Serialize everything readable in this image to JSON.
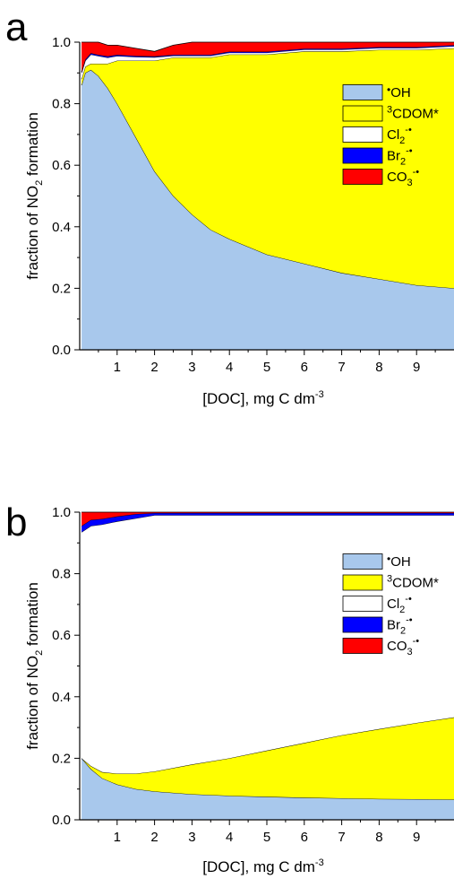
{
  "colors": {
    "OH": "#a8c8ec",
    "CDOM": "#ffff00",
    "Cl2": "#ffffff",
    "Br2": "#0000ff",
    "CO3": "#ff0000"
  },
  "panels": [
    {
      "letter": "a"
    },
    {
      "letter": "b"
    }
  ],
  "chart_data": [
    {
      "type": "area",
      "stacked": true,
      "x_label_parts": {
        "main": "[DOC], mg C dm",
        "sup": "-3"
      },
      "y_label_parts": {
        "pre": "fraction of NO",
        "sub": "2",
        "post": " formation"
      },
      "xlim": [
        0,
        10
      ],
      "ylim": [
        0,
        1.0
      ],
      "xticks": [
        1,
        2,
        3,
        4,
        5,
        6,
        7,
        8,
        9
      ],
      "yticks": [
        0.0,
        0.2,
        0.4,
        0.6,
        0.8,
        1.0
      ],
      "ytick_labels": [
        "0.0",
        "0.2",
        "0.4",
        "0.6",
        "0.8",
        "1.0"
      ],
      "legend_position": "right",
      "x": [
        0.05,
        0.15,
        0.3,
        0.5,
        0.75,
        1.0,
        1.5,
        2.0,
        2.5,
        3.0,
        3.5,
        4.0,
        5.0,
        6.0,
        7.0,
        8.0,
        9.0,
        10.0
      ],
      "series": [
        {
          "name": "OH",
          "values": [
            0.86,
            0.9,
            0.91,
            0.89,
            0.85,
            0.8,
            0.69,
            0.58,
            0.5,
            0.44,
            0.39,
            0.36,
            0.31,
            0.28,
            0.25,
            0.23,
            0.21,
            0.2
          ]
        },
        {
          "name": "CDOM",
          "values": [
            0.02,
            0.02,
            0.02,
            0.04,
            0.08,
            0.14,
            0.25,
            0.36,
            0.45,
            0.51,
            0.56,
            0.6,
            0.65,
            0.69,
            0.72,
            0.745,
            0.765,
            0.78
          ]
        },
        {
          "name": "Cl2",
          "values": [
            0.02,
            0.02,
            0.03,
            0.025,
            0.02,
            0.015,
            0.012,
            0.011,
            0.006,
            0.006,
            0.006,
            0.006,
            0.006,
            0.006,
            0.006,
            0.006,
            0.006,
            0.007
          ]
        },
        {
          "name": "Br2",
          "values": [
            0.004,
            0.004,
            0.004,
            0.004,
            0.004,
            0.004,
            0.003,
            0.003,
            0.003,
            0.003,
            0.003,
            0.003,
            0.003,
            0.003,
            0.003,
            0.003,
            0.003,
            0.003
          ]
        },
        {
          "name": "CO3",
          "values": [
            0.096,
            0.056,
            0.036,
            0.041,
            0.036,
            0.031,
            0.025,
            0.016,
            0.031,
            0.041,
            0.041,
            0.031,
            0.031,
            0.021,
            0.021,
            0.016,
            0.016,
            0.01
          ]
        }
      ]
    },
    {
      "type": "area",
      "stacked": true,
      "x_label_parts": {
        "main": "[DOC], mg C dm",
        "sup": "-3"
      },
      "y_label_parts": {
        "pre": "fraction of NO",
        "sub": "2",
        "post": " formation"
      },
      "xlim": [
        0,
        10
      ],
      "ylim": [
        0,
        1.0
      ],
      "xticks": [
        1,
        2,
        3,
        4,
        5,
        6,
        7,
        8,
        9
      ],
      "yticks": [
        0.0,
        0.2,
        0.4,
        0.6,
        0.8,
        1.0
      ],
      "ytick_labels": [
        "0.0",
        "0.2",
        "0.4",
        "0.6",
        "0.8",
        "1.0"
      ],
      "legend_position": "right",
      "x": [
        0.05,
        0.3,
        0.6,
        1.0,
        1.5,
        2.0,
        3.0,
        4.0,
        5.0,
        6.0,
        7.0,
        8.0,
        9.0,
        10.0
      ],
      "series": [
        {
          "name": "OH",
          "values": [
            0.2,
            0.165,
            0.135,
            0.115,
            0.1,
            0.092,
            0.083,
            0.078,
            0.075,
            0.072,
            0.07,
            0.068,
            0.067,
            0.066
          ]
        },
        {
          "name": "CDOM",
          "values": [
            0.0,
            0.01,
            0.02,
            0.035,
            0.05,
            0.065,
            0.097,
            0.122,
            0.15,
            0.178,
            0.205,
            0.227,
            0.248,
            0.267
          ]
        },
        {
          "name": "Cl2",
          "values": [
            0.735,
            0.78,
            0.805,
            0.82,
            0.83,
            0.833,
            0.81,
            0.79,
            0.765,
            0.74,
            0.715,
            0.695,
            0.675,
            0.657
          ]
        },
        {
          "name": "Br2",
          "values": [
            0.02,
            0.02,
            0.018,
            0.016,
            0.014,
            0.007,
            0.007,
            0.007,
            0.007,
            0.007,
            0.007,
            0.007,
            0.007,
            0.007
          ]
        },
        {
          "name": "CO3",
          "values": [
            0.045,
            0.025,
            0.022,
            0.014,
            0.006,
            0.003,
            0.003,
            0.003,
            0.003,
            0.003,
            0.003,
            0.003,
            0.003,
            0.003
          ]
        }
      ]
    }
  ],
  "legend": [
    {
      "key": "OH",
      "pre": "•",
      "main": "OH",
      "sub": "",
      "sup": "",
      "post": ""
    },
    {
      "key": "CDOM",
      "pre": "",
      "presup": "3",
      "main": "CDOM*",
      "sub": "",
      "sup": "",
      "post": ""
    },
    {
      "key": "Cl2",
      "pre": "",
      "main": "Cl",
      "sub": "2",
      "sup": "-•",
      "post": ""
    },
    {
      "key": "Br2",
      "pre": "",
      "main": "Br",
      "sub": "2",
      "sup": "-•",
      "post": ""
    },
    {
      "key": "CO3",
      "pre": "",
      "main": "CO",
      "sub": "3",
      "sup": "-•",
      "post": ""
    }
  ]
}
